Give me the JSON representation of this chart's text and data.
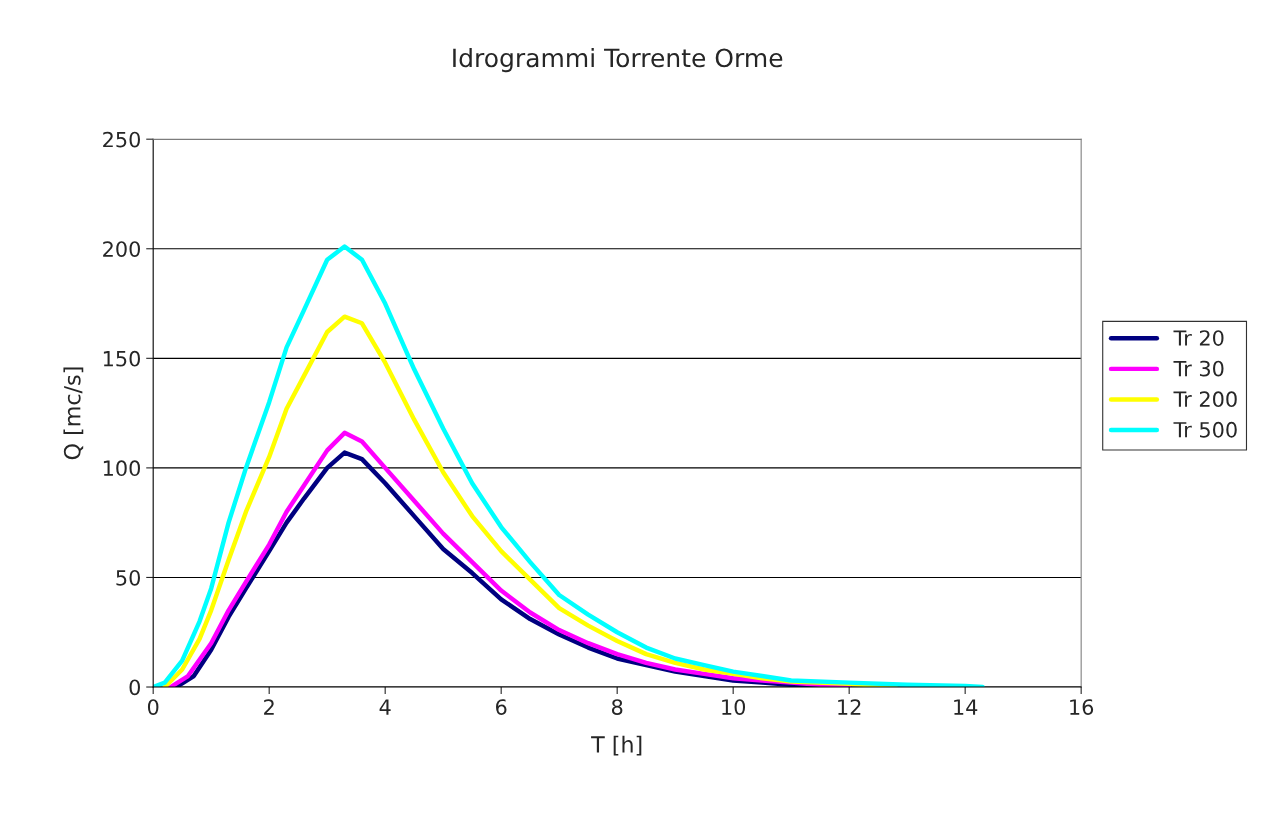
{
  "chart_data": {
    "type": "line",
    "title": "Idrogrammi Torrente Orme",
    "xlabel": "T [h]",
    "ylabel": "Q [mc/s]",
    "xlim": [
      0,
      16
    ],
    "xticks": [
      0,
      2,
      4,
      6,
      8,
      10,
      12,
      14,
      16
    ],
    "ylim": [
      0,
      250
    ],
    "yticks": [
      0,
      50,
      100,
      150,
      200,
      250
    ],
    "grid": "y",
    "legend": "right",
    "marker": "none",
    "line_style": "solid",
    "series": [
      {
        "name": "Tr 20",
        "color": "#000080",
        "x": [
          0.4,
          0.7,
          1.0,
          1.3,
          1.6,
          2.0,
          2.3,
          2.6,
          3.0,
          3.3,
          3.6,
          4.0,
          4.5,
          5.0,
          5.5,
          6.0,
          6.5,
          7.0,
          7.5,
          8.0,
          8.5,
          9.0,
          9.5,
          10,
          10.5,
          11,
          11.5,
          12
        ],
        "values": [
          0,
          5,
          17,
          32,
          45,
          62,
          75,
          86,
          100,
          107,
          104,
          93,
          78,
          63,
          52,
          40,
          31,
          24,
          18,
          13,
          10,
          7,
          5,
          3,
          2,
          1,
          0.5,
          0
        ]
      },
      {
        "name": "Tr 30",
        "color": "#ff00ff",
        "x": [
          0.3,
          0.6,
          1.0,
          1.3,
          1.6,
          2.0,
          2.3,
          2.6,
          3.0,
          3.3,
          3.6,
          4.0,
          4.5,
          5.0,
          5.5,
          6.0,
          6.5,
          7.0,
          7.5,
          8.0,
          8.5,
          9.0,
          9.5,
          10,
          10.5,
          11,
          11.5,
          12
        ],
        "values": [
          0,
          5,
          20,
          35,
          48,
          65,
          80,
          92,
          108,
          116,
          112,
          100,
          85,
          70,
          57,
          44,
          34,
          26,
          20,
          15,
          11,
          8,
          6,
          4,
          3,
          2,
          1,
          0
        ]
      },
      {
        "name": "Tr 200",
        "color": "#ffff00",
        "x": [
          0.2,
          0.5,
          0.8,
          1.0,
          1.3,
          1.6,
          2.0,
          2.3,
          2.6,
          3.0,
          3.3,
          3.6,
          4.0,
          4.5,
          5.0,
          5.5,
          6.0,
          6.5,
          7.0,
          7.5,
          8.0,
          8.5,
          9.0,
          9.5,
          10,
          10.5,
          11,
          12,
          12.8
        ],
        "values": [
          0,
          8,
          22,
          35,
          58,
          80,
          105,
          127,
          142,
          162,
          169,
          166,
          148,
          122,
          98,
          78,
          62,
          49,
          36,
          28,
          21,
          15,
          11,
          8,
          6,
          4,
          2.5,
          1.5,
          0
        ]
      },
      {
        "name": "Tr 500",
        "color": "#00ffff",
        "x": [
          0,
          0.2,
          0.5,
          0.8,
          1.0,
          1.3,
          1.6,
          2.0,
          2.3,
          2.6,
          3.0,
          3.3,
          3.6,
          4.0,
          4.5,
          5.0,
          5.5,
          6.0,
          6.5,
          7.0,
          7.5,
          8.0,
          8.5,
          9.0,
          9.5,
          10,
          10.5,
          11,
          12,
          13,
          14,
          14.3
        ],
        "values": [
          0,
          2,
          12,
          30,
          45,
          75,
          100,
          130,
          155,
          172,
          195,
          201,
          195,
          175,
          145,
          118,
          93,
          73,
          57,
          42,
          33,
          25,
          18,
          13,
          10,
          7,
          5,
          3,
          2,
          1,
          0.5,
          0
        ]
      }
    ]
  }
}
